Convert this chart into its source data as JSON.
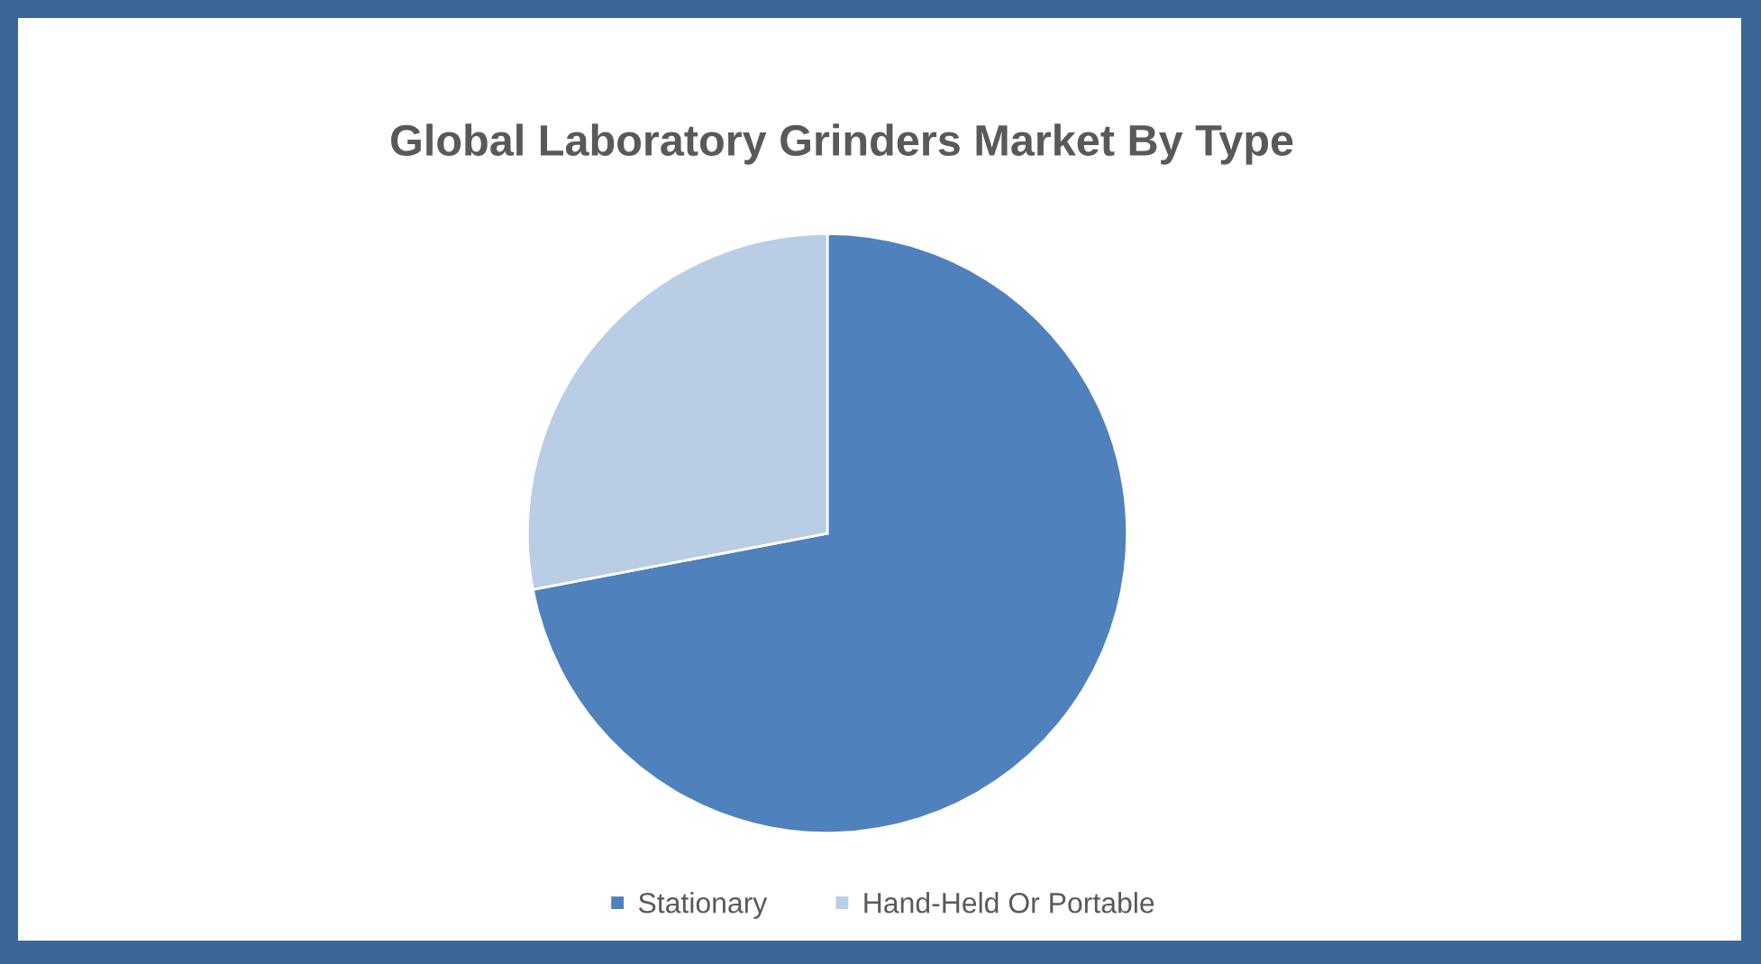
{
  "chart_data": {
    "type": "pie",
    "title": "Global Laboratory Grinders Market By Type",
    "categories": [
      "Stationary",
      "Hand-Held Or Portable"
    ],
    "values": [
      72,
      28
    ],
    "colors": [
      "#4f81bd",
      "#b9cde5"
    ],
    "legend": "bottom"
  }
}
